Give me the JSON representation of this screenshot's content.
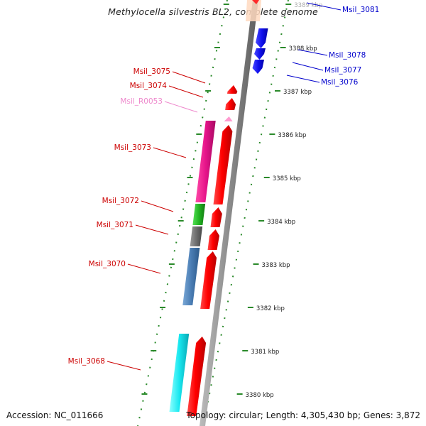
{
  "title": "Methylocella silvestris BL2, complete genome",
  "footer": {
    "accession": "Accession: NC_011666",
    "topology": "Topology: circular; Length: 4,305,430 bp; Genes: 3,872"
  },
  "colors": {
    "forward_label": "#cc0000",
    "reverse_label": "#0000cc",
    "rna_label": "#ee88cc",
    "tick": "#2a8a2a",
    "backbone": "#8c8c8c"
  },
  "kbp_ticks": [
    {
      "kbp": 3380,
      "label": "3380 kbp"
    },
    {
      "kbp": 3381,
      "label": "3381 kbp"
    },
    {
      "kbp": 3382,
      "label": "3382 kbp"
    },
    {
      "kbp": 3383,
      "label": "3383 kbp"
    },
    {
      "kbp": 3384,
      "label": "3384 kbp"
    },
    {
      "kbp": 3385,
      "label": "3385 kbp"
    },
    {
      "kbp": 3386,
      "label": "3386 kbp"
    },
    {
      "kbp": 3387,
      "label": "3387 kbp"
    },
    {
      "kbp": 3388,
      "label": "3388 kbp"
    },
    {
      "kbp": 3389,
      "label": "3389 kbp"
    }
  ],
  "genes_left": [
    {
      "label": "Msil_3075",
      "color": "#cc0000"
    },
    {
      "label": "Msil_3074",
      "color": "#cc0000"
    },
    {
      "label": "Msil_R0053",
      "color": "#ee88cc"
    },
    {
      "label": "Msil_3073",
      "color": "#cc0000"
    },
    {
      "label": "Msil_3072",
      "color": "#cc0000"
    },
    {
      "label": "Msil_3071",
      "color": "#cc0000"
    },
    {
      "label": "Msil_3070",
      "color": "#cc0000"
    },
    {
      "label": "Msil_3068",
      "color": "#cc0000"
    }
  ],
  "genes_right": [
    {
      "label": "Msil_3081",
      "color": "#0000cc"
    },
    {
      "label": "Msil_3078",
      "color": "#0000cc"
    },
    {
      "label": "Msil_3077",
      "color": "#0000cc"
    },
    {
      "label": "Msil_3076",
      "color": "#0000cc"
    }
  ]
}
